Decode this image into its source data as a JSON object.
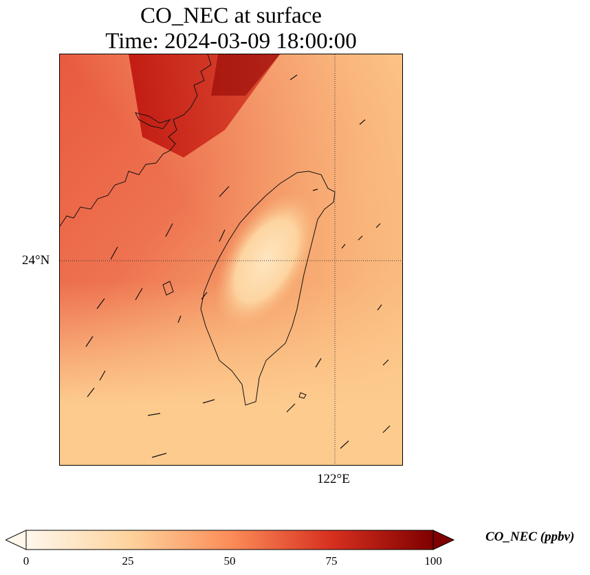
{
  "title": {
    "line1": "CO_NEC at surface",
    "line2": "Time: 2024-03-09 18:00:00"
  },
  "map": {
    "lat_label": "24°N",
    "lon_label": "122°E",
    "gridline_style": "dotted",
    "colormap": "OrRd",
    "features": [
      "Taiwan coastline",
      "mainland China coastline",
      "wind vectors"
    ]
  },
  "colorbar": {
    "label": "CO_NEC (ppbv)",
    "ticks": [
      "0",
      "25",
      "50",
      "75",
      "100"
    ],
    "min": 0,
    "max": 100,
    "extend": "both",
    "colors": [
      "#fff7ec",
      "#fdd49e",
      "#fc8d59",
      "#d7301f",
      "#7f0000"
    ]
  }
}
